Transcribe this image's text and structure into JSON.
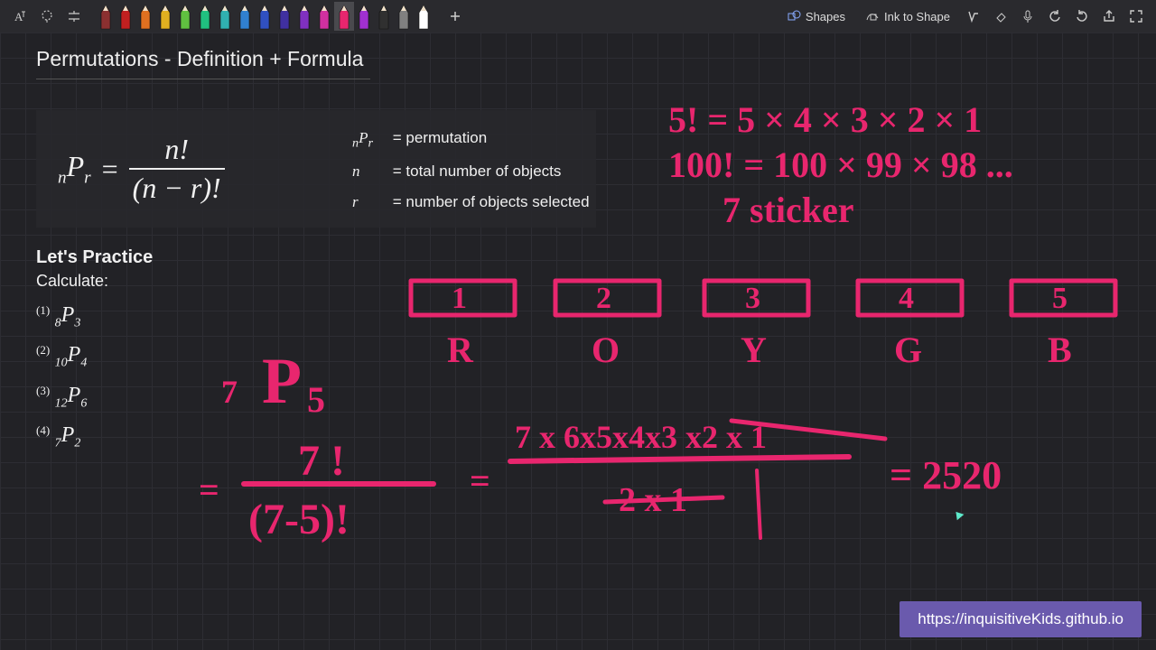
{
  "toolbar": {
    "pen_colors": [
      "#8b3030",
      "#c02020",
      "#e07020",
      "#e0b020",
      "#60c040",
      "#20c080",
      "#30b0b0",
      "#3080d0",
      "#3050c0",
      "#4030a0",
      "#8030c0",
      "#d030a0",
      "#e8266e",
      "#a030d0",
      "#303030",
      "#808080",
      "#ffffff"
    ],
    "selected_pen_index": 12,
    "shape_label": "Shapes",
    "ink_to_shape_label": "Ink to Shape"
  },
  "title": "Permutations - Definition + Formula",
  "formula": {
    "lhs_pre": "n",
    "lhs_main": "P",
    "lhs_post": "r",
    "num": "n!",
    "den": "(n − r)!"
  },
  "legend": {
    "l1_sym": "ₙPᵣ",
    "l1_txt": "= permutation",
    "l2_sym": "n",
    "l2_txt": "= total number of objects",
    "l3_sym": "r",
    "l3_txt": "= number of objects selected"
  },
  "practice": {
    "heading": "Let's Practice",
    "sub": "Calculate:",
    "items": [
      {
        "ord": "(1)",
        "n": "8",
        "r": "3"
      },
      {
        "ord": "(2)",
        "n": "10",
        "r": "4"
      },
      {
        "ord": "(3)",
        "n": "12",
        "r": "6"
      },
      {
        "ord": "(4)",
        "n": "7",
        "r": "2"
      }
    ]
  },
  "watermark": "https://inquisitiveKids.github.io",
  "ink_color": "#e8266e",
  "handwriting": {
    "line1": "5! = 5 × 4 × 3 × 2 × 1",
    "line2": "100! = 100 × 99 × 98 ...",
    "line3": "7 sticker",
    "boxes": [
      {
        "num": "1",
        "label": "R"
      },
      {
        "num": "2",
        "label": "O"
      },
      {
        "num": "3",
        "label": "Y"
      },
      {
        "num": "4",
        "label": "G"
      },
      {
        "num": "5",
        "label": "B"
      }
    ],
    "work_lhs": "7P5",
    "work_eq": "= 7! / (7-5)!",
    "work_mid": "= 7×6×5×4×3×2×1 / 2×1",
    "work_ans": "= 2520"
  }
}
